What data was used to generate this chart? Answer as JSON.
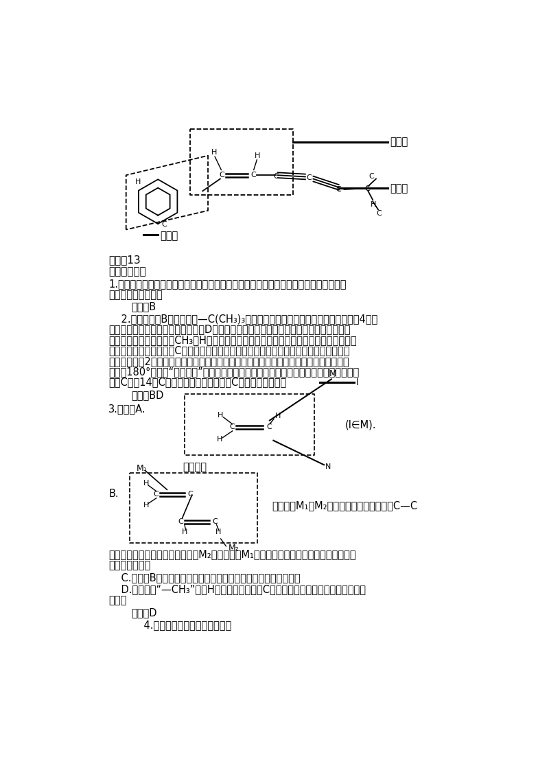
{
  "bg_color": "#ffffff",
  "text_color": "#000000",
  "page_width": 8.0,
  "page_height": 11.32,
  "line1": "答案：13",
  "line2": "歼灭难点训练",
  "para1a": "1.提示：通过转动，可使苯平面与烯平面重合在同一平面，也可两平面仅交于一条直线，",
  "para1b": "傔直线在苯平面上。",
  "answer1": "答案：B",
  "para2_1": "    2.解析：只有B项中叔丁基—C(CH₃)₃的中心碳位于一个四面体的中心，它连接的4个碳",
  "para2_2": "原子不可能在同一个平面上。此外，D项中，同时连在两个苯环上的那个碳原子，如果它跟",
  "para2_3": "苯环共平面，则它连接的CH₃和H，必然一个在环前，一个在环后。因此甲基碳原子不可能",
  "para2_4": "再在苯环平面上。注意，C项中的两个甲基是可以同时处在两个苯环所共有的平面上的。有",
  "para2_5": "人提出，怀留2个甲基过于拥挤，必须翘起一个；则请注意，如果从连接两个苯环的单键为",
  "para2_6": "轴旋转180°，则此“空间拥挤”可以消除，两个甲基一个在上，一个在下，都在苯平面上。",
  "para2_7": "所以C项的14个C原子仍可在一个平面上，C项不是正确答案。",
  "answer2": "答案：BD",
  "label3a": "3.解析：A.",
  "label3right": "(l∈M).",
  "labelB": "B.",
  "para3B": "分子中，M₁和M₂两个平面相交于一条直线C—C",
  "para3C": "单键，由于单键可转动，因而可将M₂平面转至与M₁平面重合，所以该分子中所有原子可能",
  "para3D": "处于同一平面。",
  "para4C": "    C.原理同B，通过碳碳单键相连的两个平面，有可能重合在一起。",
  "para4D": "    D.该分子中“—CH₃”中的H原子和与它相连的C原子，形成四面体结构，不在同一平",
  "para4D2": "面上。",
  "answer3": "答案：D",
  "para5": "    4.提示：以甲醛平面为参照物："
}
